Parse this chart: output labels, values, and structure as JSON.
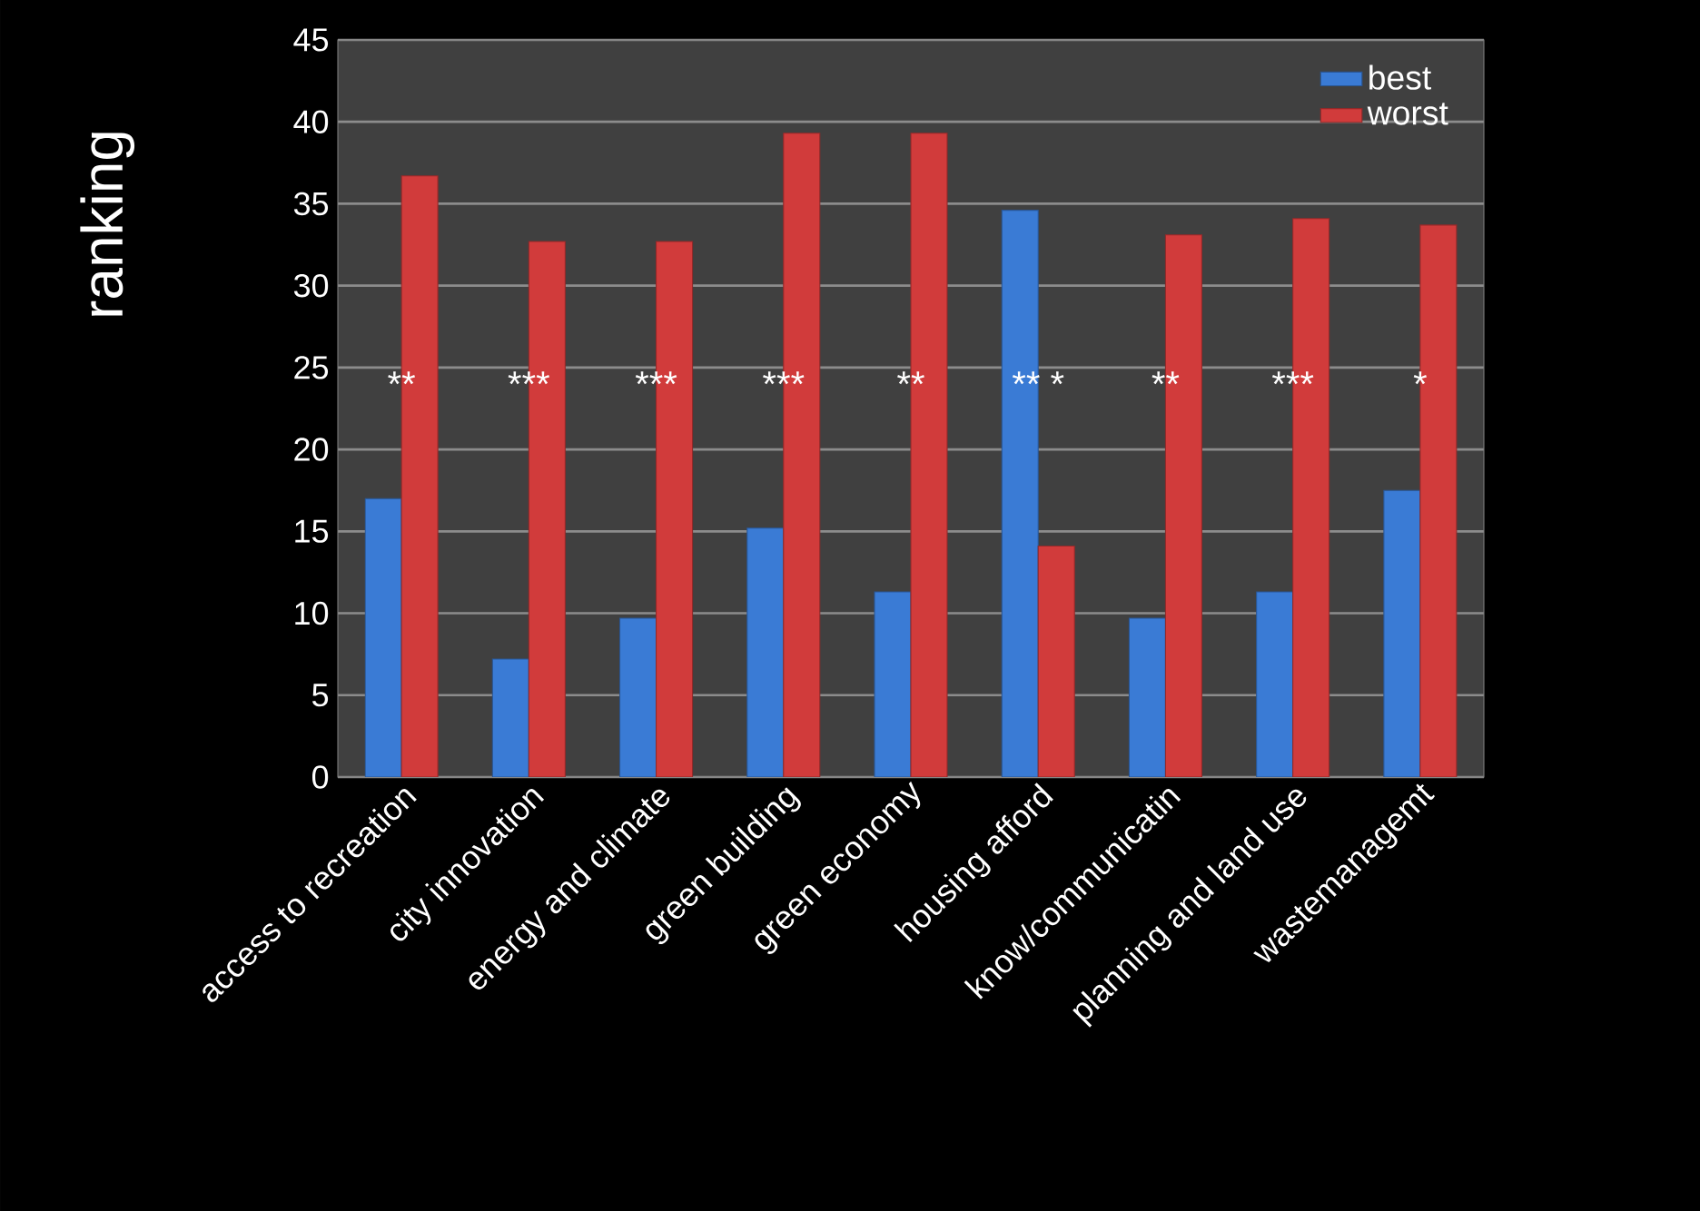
{
  "chart_data": {
    "type": "bar",
    "ylabel": "ranking",
    "categories": [
      "access to recreation",
      "city innovation",
      "energy and climate",
      "green building",
      "green economy",
      "housing afford",
      "know/communicatin",
      "planning and land use",
      "wastemanagemt"
    ],
    "series": [
      {
        "name": "best",
        "color": "#3a7bd5",
        "values": [
          17,
          7.2,
          9.7,
          15.2,
          11.3,
          34.6,
          9.7,
          11.3,
          17.5
        ]
      },
      {
        "name": "worst",
        "color": "#d13b3b",
        "values": [
          36.7,
          32.7,
          32.7,
          39.3,
          39.3,
          14.1,
          33.1,
          34.1,
          33.7
        ]
      }
    ],
    "ylim": [
      0,
      45
    ],
    "yticks": [
      0,
      5,
      10,
      15,
      20,
      25,
      30,
      35,
      40,
      45
    ],
    "grid": "y",
    "legend": "top right",
    "annotations": [
      "**",
      "***",
      "***",
      "***",
      "**",
      "** *",
      "**",
      "***",
      "*"
    ]
  }
}
